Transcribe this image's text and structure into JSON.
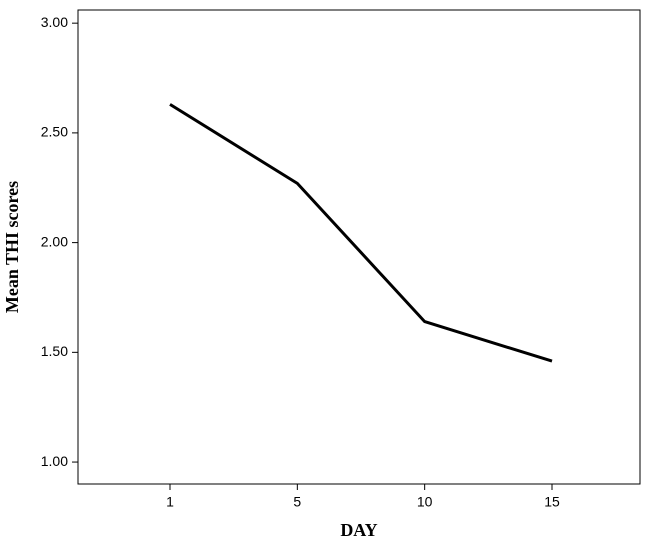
{
  "chart_data": {
    "type": "line",
    "x_label": "DAY",
    "y_label": "Mean THI scores",
    "categories": [
      "1",
      "5",
      "10",
      "15"
    ],
    "series": [
      {
        "color": "#000000",
        "values": [
          2.63,
          2.27,
          1.64,
          1.46
        ]
      }
    ],
    "ylim": [
      0.9,
      3.06
    ],
    "yticks": [
      {
        "value": 1,
        "label": "1.00"
      },
      {
        "value": 1.5,
        "label": "1.50"
      },
      {
        "value": 2,
        "label": "2.00"
      },
      {
        "value": 2.5,
        "label": "2.50"
      },
      {
        "value": 3,
        "label": "3.00"
      }
    ]
  }
}
